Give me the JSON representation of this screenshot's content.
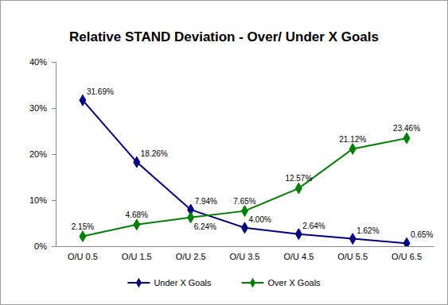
{
  "chart_data": {
    "type": "line",
    "title": "Relative STAND Deviation - Over/ Under X Goals",
    "categories": [
      "O/U 0.5",
      "O/U 1.5",
      "O/U 2.5",
      "O/U 3.5",
      "O/U 4.5",
      "O/U 5.5",
      "O/U 6.5"
    ],
    "series": [
      {
        "name": "Under X Goals",
        "color": "#000080",
        "marker": "diamond",
        "line_style": "solid",
        "values": [
          31.69,
          18.26,
          7.94,
          4.0,
          2.64,
          1.62,
          0.65
        ],
        "value_labels": [
          "31.69%",
          "18.26%",
          "7.94%",
          "4.00%",
          "2.64%",
          "1.62%",
          "0.65%"
        ]
      },
      {
        "name": "Over X Goals",
        "color": "#008000",
        "marker": "diamond",
        "line_style": "solid",
        "values": [
          2.15,
          4.68,
          6.24,
          7.65,
          12.57,
          21.12,
          23.46
        ],
        "value_labels": [
          "2.15%",
          "4.68%",
          "6.24%",
          "7.65%",
          "12.57%",
          "21.12%",
          "23.46%"
        ]
      }
    ],
    "ylim": [
      0,
      40
    ],
    "yticks": [
      {
        "value": 0,
        "label": "0%"
      },
      {
        "value": 10,
        "label": "10%"
      },
      {
        "value": 20,
        "label": "20%"
      },
      {
        "value": 30,
        "label": "30%"
      },
      {
        "value": 40,
        "label": "40%"
      }
    ],
    "grid": false,
    "legend": "bottom",
    "data_labels": true
  }
}
